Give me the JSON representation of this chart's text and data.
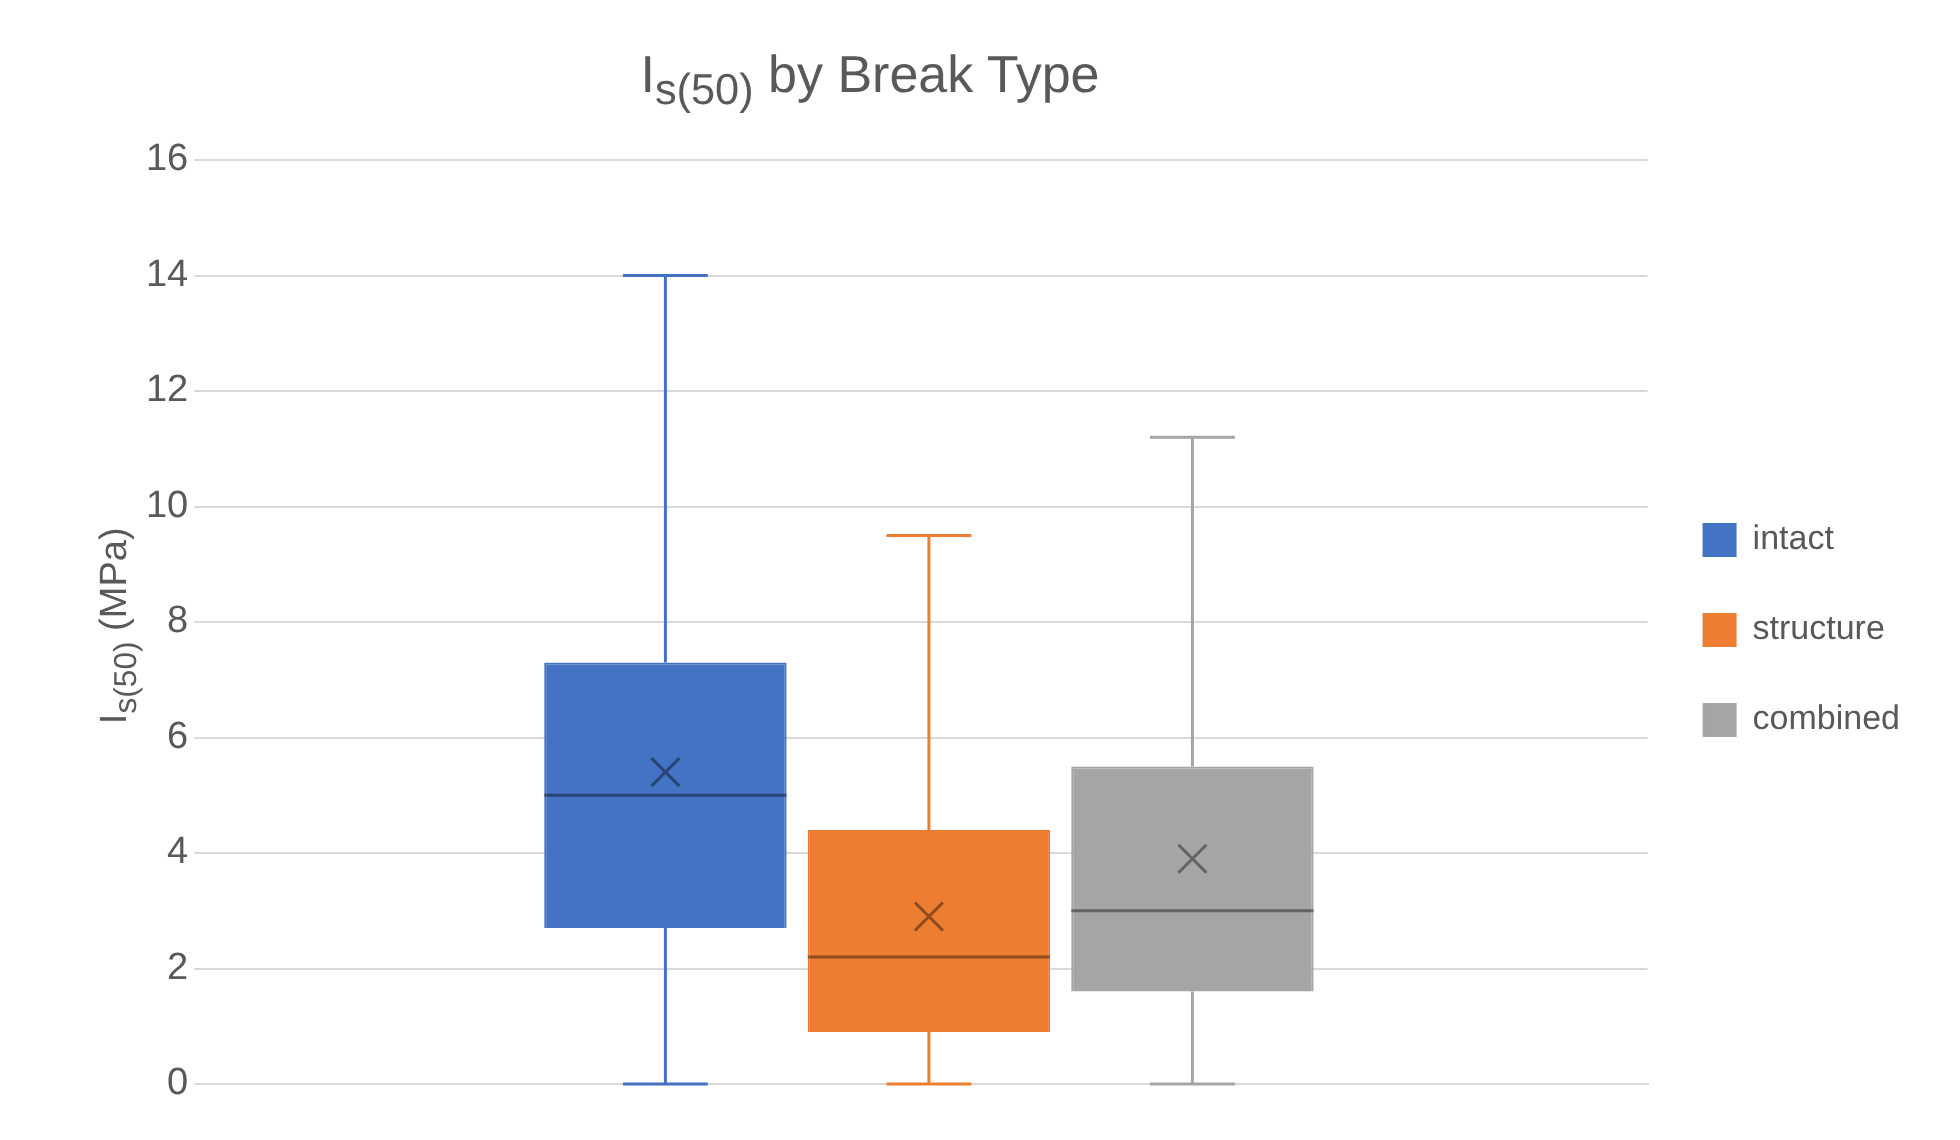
{
  "chart_data": {
    "type": "box",
    "title": "I$_{s(50)}$ by Break Type",
    "ylabel": "I$_{s(50)}$ (MPa)",
    "categories": [
      null
    ],
    "ylim": [
      0,
      16
    ],
    "yticks": [
      0,
      2,
      4,
      6,
      8,
      10,
      12,
      14,
      16
    ],
    "grid": "y",
    "legend": "right",
    "tick_labels": "y",
    "series": [
      {
        "name": "intact",
        "color": "#4472c4",
        "boxes": [
          {
            "low": 0,
            "q1": 2.7,
            "median": 5.0,
            "q3": 7.3,
            "high": 14.0,
            "mean": 5.4
          }
        ]
      },
      {
        "name": "structure",
        "color": "#ed7d31",
        "boxes": [
          {
            "low": 0,
            "q1": 0.9,
            "median": 2.2,
            "q3": 4.4,
            "high": 9.5,
            "mean": 2.9
          }
        ]
      },
      {
        "name": "combined",
        "color": "#a5a5a5",
        "boxes": [
          {
            "low": 0,
            "q1": 1.6,
            "median": 3.0,
            "q3": 5.5,
            "high": 11.2,
            "mean": 3.9
          }
        ]
      }
    ]
  }
}
